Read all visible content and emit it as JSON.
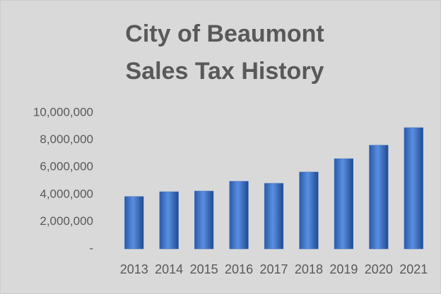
{
  "chart_data": {
    "type": "bar",
    "title": [
      "City of Beaumont",
      "Sales Tax History"
    ],
    "categories": [
      "2013",
      "2014",
      "2015",
      "2016",
      "2017",
      "2018",
      "2019",
      "2020",
      "2021"
    ],
    "values": [
      3850000,
      4200000,
      4250000,
      4970000,
      4820000,
      5650000,
      6630000,
      7620000,
      8910000
    ],
    "color": "#3a6fc4",
    "ylim": [
      0,
      10000000
    ],
    "yticks": [
      {
        "value": 0,
        "label": "-"
      },
      {
        "value": 2000000,
        "label": "2,000,000"
      },
      {
        "value": 4000000,
        "label": "4,000,000"
      },
      {
        "value": 6000000,
        "label": "6,000,000"
      },
      {
        "value": 8000000,
        "label": "8,000,000"
      },
      {
        "value": 10000000,
        "label": "10,000,000"
      }
    ],
    "grid": false
  }
}
